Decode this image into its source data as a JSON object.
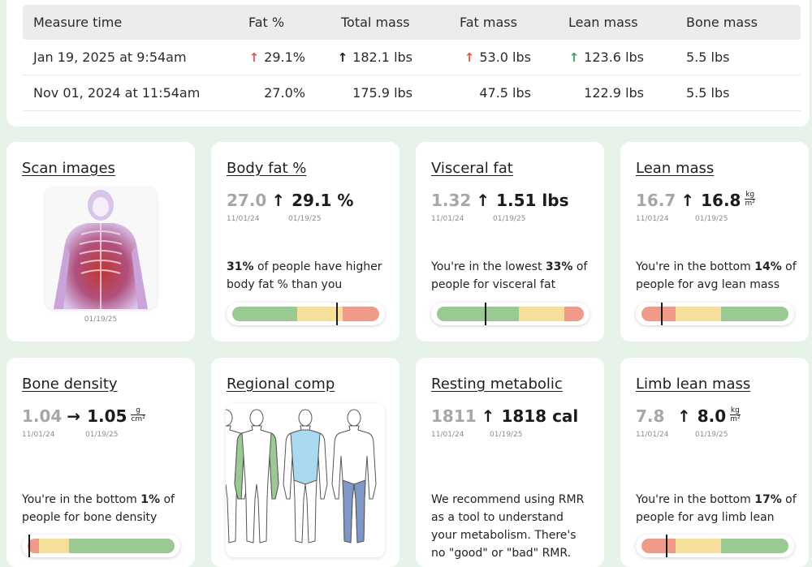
{
  "table": {
    "headers": [
      "Measure time",
      "Fat %",
      "Total mass",
      "Fat mass",
      "Lean mass",
      "Bone mass"
    ],
    "rows": [
      {
        "time": "Jan 19, 2025 at 9:54am",
        "fat_pct": "29.1%",
        "total_mass": "182.1 lbs",
        "fat_mass": "53.0 lbs",
        "lean_mass": "123.6 lbs",
        "bone_mass": "5.5 lbs",
        "arrow": "↑"
      },
      {
        "time": "Nov 01, 2024 at 11:54am",
        "fat_pct": "27.0%",
        "total_mass": "175.9 lbs",
        "fat_mass": "47.5 lbs",
        "lean_mass": "122.9 lbs",
        "bone_mass": "5.5 lbs"
      }
    ]
  },
  "colors": {
    "up_bad": "#e2574c",
    "up_good": "#3aa655",
    "gauge_green": "#9bc993",
    "gauge_yellow": "#f6df9a",
    "gauge_red": "#f09a89",
    "background": "#e7f2e9"
  },
  "cards": {
    "scan": {
      "title": "Scan images",
      "date": "01/19/25",
      "icon": "body-scan-image"
    },
    "body_fat": {
      "title": "Body fat %",
      "old": "27.0",
      "arrow": "↑",
      "new": "29.1 %",
      "old_date": "11/01/24",
      "new_date": "01/19/25",
      "desc_pre": "",
      "desc_bold": "31%",
      "desc_post": " of people have higher body fat % than you",
      "gauge_position": 0.71
    },
    "visceral": {
      "title": "Visceral fat",
      "old": "1.32",
      "arrow": "↑",
      "new": "1.51 lbs",
      "old_date": "11/01/24",
      "new_date": "01/19/25",
      "desc_pre": "You're in the lowest ",
      "desc_bold": "33%",
      "desc_post": " of people for visceral fat",
      "gauge_position": 0.33
    },
    "lean": {
      "title": "Lean mass",
      "old": "16.7",
      "arrow": "↑",
      "new": "16.8",
      "unit_num": "kg",
      "unit_den": "m²",
      "old_date": "11/01/24",
      "new_date": "01/19/25",
      "desc_pre": "You're in the bottom ",
      "desc_bold": "14%",
      "desc_post": " of people for avg lean mass",
      "gauge_position": 0.14
    },
    "bone": {
      "title": "Bone density",
      "old": "1.04",
      "arrow": "→",
      "new": "1.05",
      "unit_num": "g",
      "unit_den": "cm²",
      "old_date": "11/01/24",
      "new_date": "01/19/25",
      "desc_pre": "You're in the bottom ",
      "desc_bold": "1%",
      "desc_post": " of people for bone density",
      "gauge_position": 0.01
    },
    "regional": {
      "title": "Regional comp",
      "icon": "regional-body-figures"
    },
    "resting": {
      "title": "Resting metabolic",
      "old": "1811",
      "arrow": "↑",
      "new": "1818 cal",
      "old_date": "11/01/24",
      "new_date": "01/19/25",
      "desc": "We recommend using RMR as a tool to understand your metabolism. There's no \"good\" or \"bad\" RMR."
    },
    "limb": {
      "title": "Limb lean mass",
      "old": "7.8",
      "arrow": "↑",
      "new": "8.0",
      "unit_num": "kg",
      "unit_den": "m²",
      "old_date": "11/01/24",
      "new_date": "01/19/25",
      "desc_pre": "You're in the bottom ",
      "desc_bold": "17%",
      "desc_post": " of people for avg limb lean",
      "gauge_position": 0.17
    }
  }
}
